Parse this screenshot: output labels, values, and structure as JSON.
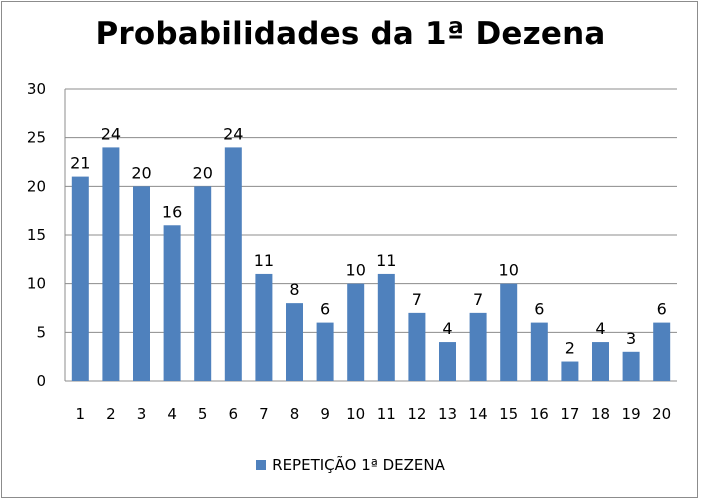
{
  "chart_data": {
    "type": "bar",
    "title": "Probabilidades da 1ª Dezena",
    "categories": [
      "1",
      "2",
      "3",
      "4",
      "5",
      "6",
      "7",
      "8",
      "9",
      "10",
      "11",
      "12",
      "13",
      "14",
      "15",
      "16",
      "17",
      "18",
      "19",
      "20"
    ],
    "series": [
      {
        "name": "REPETIÇÃO 1ª DEZENA",
        "values": [
          21,
          24,
          20,
          16,
          20,
          24,
          11,
          8,
          6,
          10,
          11,
          7,
          4,
          7,
          10,
          6,
          2,
          4,
          3,
          6
        ]
      }
    ],
    "ylim": [
      0,
      30
    ],
    "yticks": [
      "0",
      "5",
      "10",
      "15",
      "20",
      "25",
      "30"
    ],
    "grid": true,
    "legend": "bottom",
    "data_labels": true,
    "colors": {
      "bar": "#4f81bd",
      "grid": "#8c8c8c",
      "axis": "#8c8c8c"
    }
  }
}
